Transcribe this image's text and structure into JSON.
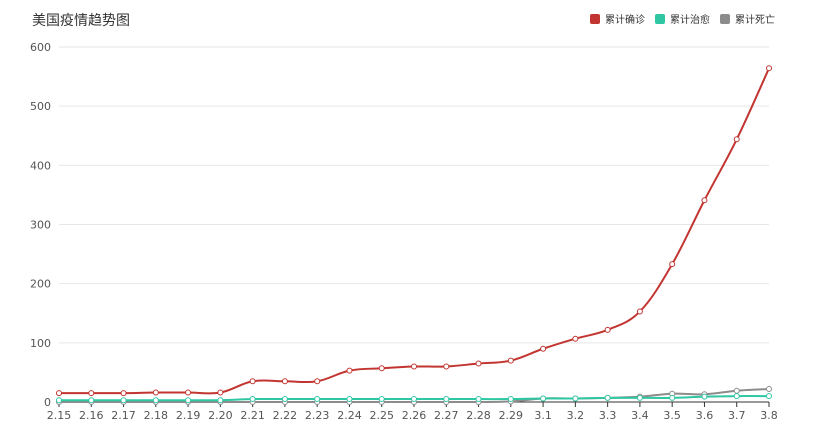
{
  "chart_data": {
    "type": "line",
    "title": "美国疫情趋势图",
    "categories": [
      "2.15",
      "2.16",
      "2.17",
      "2.18",
      "2.19",
      "2.20",
      "2.21",
      "2.22",
      "2.23",
      "2.24",
      "2.25",
      "2.26",
      "2.27",
      "2.28",
      "2.29",
      "3.1",
      "3.2",
      "3.3",
      "3.4",
      "3.5",
      "3.6",
      "3.7",
      "3.8"
    ],
    "ylim": [
      0,
      600
    ],
    "yticks": [
      0,
      100,
      200,
      300,
      400,
      500,
      600
    ],
    "grid": true,
    "legend_position": "top-right",
    "series": [
      {
        "name": "累计确诊",
        "color": "#c23531",
        "values": [
          15,
          15,
          15,
          16,
          16,
          16,
          35,
          35,
          35,
          53,
          57,
          60,
          60,
          65,
          70,
          90,
          107,
          122,
          153,
          233,
          341,
          444,
          564
        ]
      },
      {
        "name": "累计治愈",
        "color": "#2ec7a4",
        "values": [
          3,
          3,
          3,
          3,
          3,
          3,
          5,
          5,
          5,
          5,
          5,
          5,
          5,
          5,
          5,
          6,
          6,
          7,
          7,
          7,
          9,
          10,
          10
        ]
      },
      {
        "name": "累计死亡",
        "color": "#8c8c8c",
        "values": [
          0,
          0,
          0,
          0,
          0,
          0,
          0,
          0,
          0,
          0,
          0,
          0,
          0,
          0,
          1,
          6,
          6,
          7,
          9,
          14,
          13,
          19,
          22
        ]
      }
    ]
  }
}
